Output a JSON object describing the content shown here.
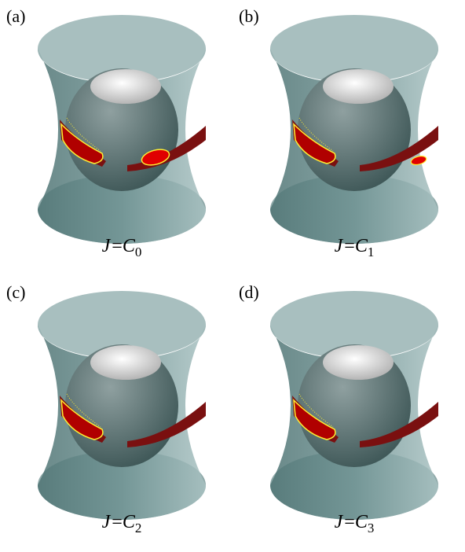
{
  "panels": [
    {
      "label": "(a)",
      "caption": {
        "lhs": "J",
        "op": "=",
        "base": "C",
        "sub": "0"
      }
    },
    {
      "label": "(b)",
      "caption": {
        "lhs": "J",
        "op": "=",
        "base": "C",
        "sub": "1"
      }
    },
    {
      "label": "(c)",
      "caption": {
        "lhs": "J",
        "op": "=",
        "base": "C",
        "sub": "2"
      }
    },
    {
      "label": "(d)",
      "caption": {
        "lhs": "J",
        "op": "=",
        "base": "C",
        "sub": "3"
      }
    }
  ]
}
